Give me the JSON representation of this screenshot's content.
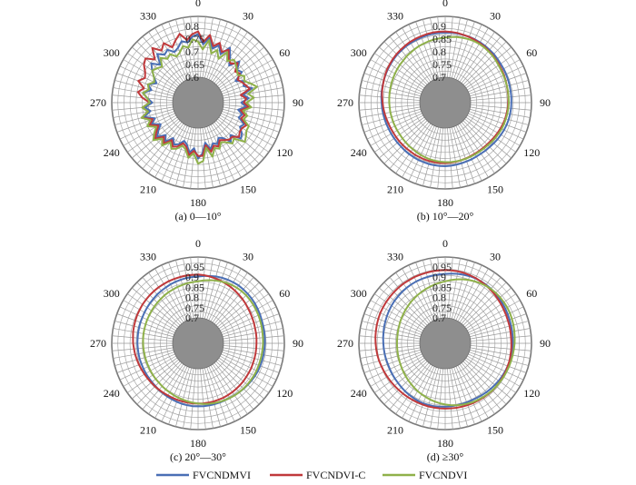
{
  "chart_data": [
    {
      "type": "radar",
      "caption": "(a) 0—10°",
      "angle_labels": [
        "0",
        "30",
        "60",
        "90",
        "120",
        "150",
        "180",
        "210",
        "240",
        "270",
        "300",
        "330"
      ],
      "r_ticks": [
        "0.6",
        "0.65",
        "0.7",
        "0.75",
        "0.8"
      ],
      "r_range": [
        0.6,
        0.8
      ],
      "series": [
        {
          "name": "FVCNDMVI",
          "color": "#4a6fb5",
          "values": [
            0.77,
            0.73,
            0.76,
            0.72,
            0.74,
            0.71,
            0.75,
            0.72,
            0.69,
            0.73,
            0.7,
            0.71,
            0.67,
            0.7,
            0.69,
            0.72,
            0.68,
            0.7,
            0.67,
            0.69,
            0.66,
            0.68,
            0.67,
            0.7,
            0.69,
            0.71,
            0.72,
            0.68,
            0.7,
            0.67,
            0.66,
            0.68,
            0.67,
            0.69,
            0.66,
            0.7,
            0.72,
            0.68,
            0.7,
            0.67,
            0.66,
            0.68,
            0.69,
            0.67,
            0.7,
            0.68,
            0.71,
            0.69,
            0.67,
            0.7,
            0.68,
            0.72,
            0.69,
            0.71,
            0.68,
            0.7,
            0.72,
            0.69,
            0.71,
            0.68,
            0.7,
            0.72,
            0.74,
            0.71,
            0.75,
            0.73,
            0.74,
            0.72,
            0.73,
            0.75,
            0.74,
            0.76
          ]
        },
        {
          "name": "FVCNDVI-C",
          "color": "#c0393b",
          "values": [
            0.78,
            0.74,
            0.77,
            0.73,
            0.75,
            0.72,
            0.74,
            0.71,
            0.7,
            0.72,
            0.69,
            0.7,
            0.68,
            0.69,
            0.7,
            0.71,
            0.67,
            0.69,
            0.68,
            0.7,
            0.67,
            0.69,
            0.68,
            0.71,
            0.7,
            0.7,
            0.71,
            0.69,
            0.69,
            0.68,
            0.67,
            0.69,
            0.68,
            0.7,
            0.67,
            0.71,
            0.71,
            0.69,
            0.71,
            0.68,
            0.67,
            0.69,
            0.7,
            0.68,
            0.71,
            0.69,
            0.72,
            0.7,
            0.68,
            0.71,
            0.69,
            0.73,
            0.7,
            0.72,
            0.69,
            0.72,
            0.74,
            0.72,
            0.75,
            0.73,
            0.74,
            0.76,
            0.77,
            0.74,
            0.78,
            0.75,
            0.77,
            0.74,
            0.76,
            0.78,
            0.75,
            0.77
          ]
        },
        {
          "name": "FVCNDVI",
          "color": "#8fb14a",
          "values": [
            0.74,
            0.71,
            0.75,
            0.7,
            0.72,
            0.69,
            0.73,
            0.7,
            0.72,
            0.71,
            0.7,
            0.69,
            0.71,
            0.7,
            0.72,
            0.74,
            0.7,
            0.72,
            0.69,
            0.71,
            0.68,
            0.7,
            0.69,
            0.72,
            0.72,
            0.73,
            0.74,
            0.7,
            0.71,
            0.69,
            0.68,
            0.7,
            0.69,
            0.72,
            0.68,
            0.73,
            0.74,
            0.7,
            0.72,
            0.69,
            0.68,
            0.7,
            0.71,
            0.69,
            0.72,
            0.7,
            0.73,
            0.71,
            0.69,
            0.72,
            0.7,
            0.73,
            0.7,
            0.72,
            0.69,
            0.7,
            0.72,
            0.7,
            0.71,
            0.69,
            0.7,
            0.72,
            0.71,
            0.7,
            0.73,
            0.71,
            0.72,
            0.7,
            0.71,
            0.73,
            0.72,
            0.75
          ]
        }
      ]
    },
    {
      "type": "radar",
      "caption": "(b) 10°—20°",
      "angle_labels": [
        "0",
        "30",
        "60",
        "90",
        "120",
        "150",
        "180",
        "210",
        "240",
        "270",
        "300",
        "330"
      ],
      "r_ticks": [
        "0.7",
        "0.75",
        "0.8",
        "0.85",
        "0.9"
      ],
      "r_range": [
        0.7,
        0.9
      ],
      "series": [
        {
          "name": "FVCNDMVI",
          "color": "#4a6fb5",
          "values": [
            0.875,
            0.876,
            0.876,
            0.876,
            0.876,
            0.875,
            0.874,
            0.873,
            0.871,
            0.87,
            0.868,
            0.866,
            0.865,
            0.864,
            0.863,
            0.862,
            0.861,
            0.861,
            0.86,
            0.86,
            0.859,
            0.858,
            0.857,
            0.855,
            0.853,
            0.851,
            0.849,
            0.847,
            0.846,
            0.845,
            0.845,
            0.846,
            0.846,
            0.847,
            0.848,
            0.849,
            0.85,
            0.85,
            0.85,
            0.85,
            0.849,
            0.849,
            0.848,
            0.847,
            0.846,
            0.845,
            0.845,
            0.845,
            0.845,
            0.845,
            0.846,
            0.847,
            0.848,
            0.849,
            0.85,
            0.852,
            0.854,
            0.855,
            0.857,
            0.859,
            0.861,
            0.863,
            0.865,
            0.867,
            0.868,
            0.87,
            0.871,
            0.872,
            0.873,
            0.874,
            0.875,
            0.875
          ]
        },
        {
          "name": "FVCNDVI-C",
          "color": "#c0393b",
          "values": [
            0.88,
            0.879,
            0.878,
            0.876,
            0.875,
            0.873,
            0.871,
            0.869,
            0.866,
            0.864,
            0.861,
            0.859,
            0.857,
            0.855,
            0.853,
            0.851,
            0.85,
            0.849,
            0.848,
            0.847,
            0.845,
            0.844,
            0.842,
            0.84,
            0.838,
            0.836,
            0.834,
            0.833,
            0.832,
            0.832,
            0.832,
            0.833,
            0.834,
            0.835,
            0.836,
            0.837,
            0.838,
            0.838,
            0.838,
            0.838,
            0.838,
            0.837,
            0.837,
            0.836,
            0.836,
            0.836,
            0.836,
            0.836,
            0.836,
            0.837,
            0.838,
            0.84,
            0.842,
            0.844,
            0.846,
            0.849,
            0.852,
            0.854,
            0.857,
            0.86,
            0.863,
            0.865,
            0.868,
            0.87,
            0.872,
            0.874,
            0.876,
            0.877,
            0.878,
            0.879,
            0.88,
            0.88
          ]
        },
        {
          "name": "FVCNDVI",
          "color": "#8fb14a",
          "values": [
            0.856,
            0.859,
            0.862,
            0.864,
            0.866,
            0.867,
            0.867,
            0.866,
            0.864,
            0.862,
            0.859,
            0.856,
            0.854,
            0.853,
            0.852,
            0.851,
            0.851,
            0.85,
            0.85,
            0.849,
            0.848,
            0.847,
            0.846,
            0.845,
            0.843,
            0.841,
            0.839,
            0.837,
            0.836,
            0.835,
            0.835,
            0.835,
            0.835,
            0.835,
            0.835,
            0.835,
            0.834,
            0.833,
            0.832,
            0.831,
            0.829,
            0.827,
            0.825,
            0.823,
            0.822,
            0.82,
            0.819,
            0.818,
            0.818,
            0.818,
            0.818,
            0.818,
            0.819,
            0.819,
            0.82,
            0.821,
            0.822,
            0.823,
            0.825,
            0.826,
            0.828,
            0.83,
            0.832,
            0.834,
            0.837,
            0.839,
            0.842,
            0.845,
            0.847,
            0.85,
            0.852,
            0.854
          ]
        }
      ]
    },
    {
      "type": "radar",
      "caption": "(c) 20°—30°",
      "angle_labels": [
        "0",
        "30",
        "60",
        "90",
        "120",
        "150",
        "180",
        "210",
        "240",
        "270",
        "300",
        "330"
      ],
      "r_ticks": [
        "0.7",
        "0.75",
        "0.8",
        "0.85",
        "0.9",
        "0.95"
      ],
      "r_range": [
        0.7,
        0.95
      ],
      "series": [
        {
          "name": "FVCNDMVI",
          "color": "#4a6fb5",
          "values": [
            0.903,
            0.907,
            0.911,
            0.915,
            0.918,
            0.92,
            0.921,
            0.922,
            0.921,
            0.92,
            0.918,
            0.916,
            0.913,
            0.911,
            0.908,
            0.906,
            0.905,
            0.904,
            0.903,
            0.902,
            0.902,
            0.901,
            0.9,
            0.899,
            0.897,
            0.895,
            0.893,
            0.891,
            0.889,
            0.887,
            0.886,
            0.885,
            0.885,
            0.885,
            0.885,
            0.885,
            0.885,
            0.885,
            0.884,
            0.883,
            0.881,
            0.879,
            0.877,
            0.875,
            0.874,
            0.872,
            0.871,
            0.871,
            0.871,
            0.871,
            0.871,
            0.872,
            0.872,
            0.872,
            0.873,
            0.873,
            0.874,
            0.875,
            0.876,
            0.877,
            0.879,
            0.881,
            0.883,
            0.885,
            0.888,
            0.89,
            0.892,
            0.895,
            0.897,
            0.899,
            0.901,
            0.902
          ]
        },
        {
          "name": "FVCNDVI-C",
          "color": "#c0393b",
          "values": [
            0.913,
            0.911,
            0.908,
            0.905,
            0.902,
            0.898,
            0.895,
            0.891,
            0.887,
            0.883,
            0.879,
            0.875,
            0.872,
            0.869,
            0.867,
            0.865,
            0.864,
            0.863,
            0.862,
            0.862,
            0.862,
            0.862,
            0.862,
            0.863,
            0.863,
            0.864,
            0.865,
            0.866,
            0.867,
            0.868,
            0.869,
            0.87,
            0.87,
            0.871,
            0.871,
            0.871,
            0.871,
            0.871,
            0.871,
            0.871,
            0.871,
            0.871,
            0.871,
            0.872,
            0.873,
            0.874,
            0.875,
            0.877,
            0.879,
            0.881,
            0.884,
            0.886,
            0.889,
            0.891,
            0.894,
            0.896,
            0.899,
            0.901,
            0.903,
            0.905,
            0.906,
            0.908,
            0.909,
            0.91,
            0.911,
            0.912,
            0.912,
            0.913,
            0.913,
            0.913,
            0.913,
            0.913
          ]
        },
        {
          "name": "FVCNDVI",
          "color": "#8fb14a",
          "values": [
            0.88,
            0.885,
            0.89,
            0.895,
            0.899,
            0.903,
            0.906,
            0.908,
            0.909,
            0.909,
            0.908,
            0.906,
            0.904,
            0.902,
            0.9,
            0.898,
            0.896,
            0.895,
            0.894,
            0.893,
            0.893,
            0.892,
            0.892,
            0.892,
            0.892,
            0.891,
            0.891,
            0.89,
            0.889,
            0.888,
            0.886,
            0.884,
            0.882,
            0.879,
            0.877,
            0.874,
            0.871,
            0.868,
            0.865,
            0.862,
            0.859,
            0.857,
            0.854,
            0.852,
            0.85,
            0.848,
            0.847,
            0.846,
            0.845,
            0.844,
            0.844,
            0.844,
            0.844,
            0.845,
            0.845,
            0.846,
            0.847,
            0.848,
            0.849,
            0.851,
            0.852,
            0.854,
            0.856,
            0.858,
            0.86,
            0.863,
            0.865,
            0.867,
            0.87,
            0.872,
            0.875,
            0.877
          ]
        }
      ]
    },
    {
      "type": "radar",
      "caption": "(d) ≥30°",
      "angle_labels": [
        "0",
        "30",
        "60",
        "90",
        "120",
        "150",
        "180",
        "210",
        "240",
        "270",
        "300",
        "330"
      ],
      "r_ticks": [
        "0.7",
        "0.75",
        "0.8",
        "0.85",
        "0.9",
        "0.95"
      ],
      "r_range": [
        0.7,
        0.95
      ],
      "series": [
        {
          "name": "FVCNDMVI",
          "color": "#4a6fb5",
          "values": [
            0.916,
            0.919,
            0.922,
            0.924,
            0.926,
            0.927,
            0.927,
            0.926,
            0.925,
            0.923,
            0.921,
            0.918,
            0.916,
            0.914,
            0.912,
            0.91,
            0.909,
            0.908,
            0.907,
            0.906,
            0.905,
            0.904,
            0.902,
            0.9,
            0.898,
            0.896,
            0.893,
            0.891,
            0.889,
            0.887,
            0.885,
            0.884,
            0.884,
            0.884,
            0.885,
            0.886,
            0.887,
            0.888,
            0.889,
            0.889,
            0.889,
            0.888,
            0.886,
            0.884,
            0.882,
            0.88,
            0.878,
            0.877,
            0.876,
            0.875,
            0.875,
            0.876,
            0.877,
            0.878,
            0.879,
            0.881,
            0.883,
            0.886,
            0.888,
            0.891,
            0.894,
            0.897,
            0.9,
            0.902,
            0.905,
            0.907,
            0.909,
            0.911,
            0.912,
            0.913,
            0.914,
            0.915
          ]
        },
        {
          "name": "FVCNDVI-C",
          "color": "#c0393b",
          "values": [
            0.935,
            0.935,
            0.934,
            0.933,
            0.931,
            0.929,
            0.926,
            0.923,
            0.92,
            0.917,
            0.913,
            0.91,
            0.907,
            0.905,
            0.903,
            0.902,
            0.901,
            0.9,
            0.9,
            0.901,
            0.901,
            0.902,
            0.902,
            0.903,
            0.903,
            0.903,
            0.903,
            0.903,
            0.902,
            0.901,
            0.9,
            0.899,
            0.898,
            0.897,
            0.897,
            0.896,
            0.896,
            0.896,
            0.896,
            0.896,
            0.896,
            0.896,
            0.896,
            0.897,
            0.898,
            0.899,
            0.9,
            0.902,
            0.904,
            0.906,
            0.908,
            0.911,
            0.913,
            0.915,
            0.917,
            0.919,
            0.921,
            0.923,
            0.925,
            0.927,
            0.928,
            0.929,
            0.93,
            0.931,
            0.932,
            0.933,
            0.933,
            0.934,
            0.934,
            0.934,
            0.935,
            0.935
          ]
        },
        {
          "name": "FVCNDVI",
          "color": "#8fb14a",
          "values": [
            0.88,
            0.887,
            0.894,
            0.901,
            0.907,
            0.912,
            0.917,
            0.921,
            0.924,
            0.926,
            0.927,
            0.927,
            0.927,
            0.926,
            0.924,
            0.922,
            0.92,
            0.918,
            0.916,
            0.914,
            0.912,
            0.91,
            0.909,
            0.907,
            0.906,
            0.904,
            0.903,
            0.902,
            0.9,
            0.898,
            0.896,
            0.894,
            0.891,
            0.888,
            0.884,
            0.88,
            0.876,
            0.871,
            0.866,
            0.861,
            0.856,
            0.851,
            0.846,
            0.841,
            0.836,
            0.832,
            0.828,
            0.824,
            0.821,
            0.818,
            0.816,
            0.814,
            0.813,
            0.812,
            0.812,
            0.812,
            0.813,
            0.815,
            0.817,
            0.82,
            0.823,
            0.826,
            0.83,
            0.834,
            0.839,
            0.843,
            0.848,
            0.853,
            0.858,
            0.863,
            0.869,
            0.874
          ]
        }
      ]
    }
  ],
  "legend": [
    {
      "label": "FVCNDMVI",
      "color": "#4a6fb5"
    },
    {
      "label": "FVCNDVI-C",
      "color": "#c0393b"
    },
    {
      "label": "FVCNDVI",
      "color": "#8fb14a"
    }
  ]
}
